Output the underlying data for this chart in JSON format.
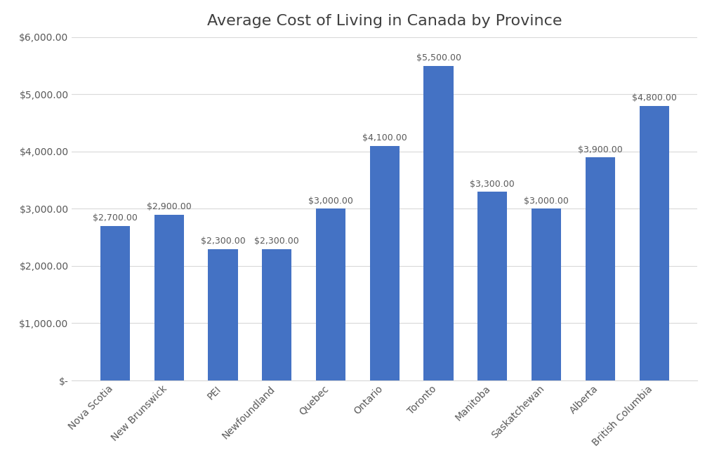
{
  "title": "Average Cost of Living in Canada by Province",
  "categories": [
    "Nova Scotia",
    "New Brunswick",
    "PEI",
    "Newfoundland",
    "Quebec",
    "Ontario",
    "Toronto",
    "Manitoba",
    "Saskatchewan",
    "Alberta",
    "British Columbia"
  ],
  "values": [
    2700,
    2900,
    2300,
    2300,
    3000,
    4100,
    5500,
    3300,
    3000,
    3900,
    4800
  ],
  "bar_color": "#4472C4",
  "ylim": [
    0,
    6000
  ],
  "yticks": [
    0,
    1000,
    2000,
    3000,
    4000,
    5000,
    6000
  ],
  "background_color": "#FFFFFF",
  "plot_bg_color": "#FFFFFF",
  "grid_color": "#D9D9D9",
  "title_fontsize": 16,
  "label_fontsize": 9,
  "tick_fontsize": 10,
  "bar_width": 0.55,
  "title_color": "#404040",
  "tick_color": "#595959"
}
